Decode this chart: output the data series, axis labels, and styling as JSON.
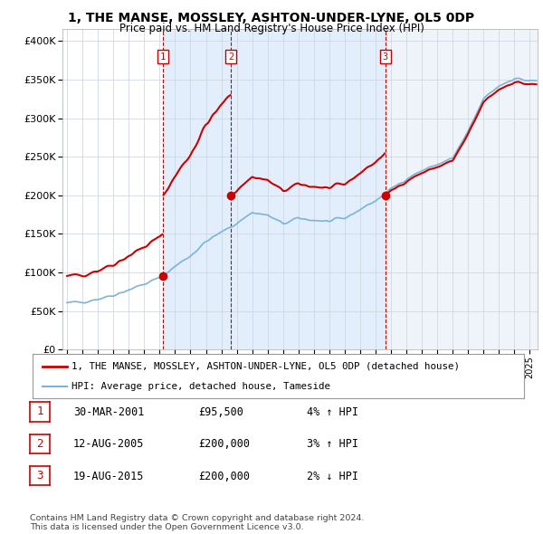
{
  "title": "1, THE MANSE, MOSSLEY, ASHTON-UNDER-LYNE, OL5 0DP",
  "subtitle": "Price paid vs. HM Land Registry's House Price Index (HPI)",
  "ytick_values": [
    0,
    50000,
    100000,
    150000,
    200000,
    250000,
    300000,
    350000,
    400000
  ],
  "ylim": [
    0,
    415000
  ],
  "sale_points": [
    {
      "year": 2001.23,
      "price": 95500,
      "label": "1"
    },
    {
      "year": 2005.61,
      "price": 200000,
      "label": "2"
    },
    {
      "year": 2015.63,
      "price": 200000,
      "label": "3"
    }
  ],
  "legend_line1": "1, THE MANSE, MOSSLEY, ASHTON-UNDER-LYNE, OL5 0DP (detached house)",
  "legend_line2": "HPI: Average price, detached house, Tameside",
  "table_rows": [
    {
      "num": "1",
      "date": "30-MAR-2001",
      "price": "£95,500",
      "hpi": "4% ↑ HPI"
    },
    {
      "num": "2",
      "date": "12-AUG-2005",
      "price": "£200,000",
      "hpi": "3% ↑ HPI"
    },
    {
      "num": "3",
      "date": "19-AUG-2015",
      "price": "£200,000",
      "hpi": "2% ↓ HPI"
    }
  ],
  "footer": "Contains HM Land Registry data © Crown copyright and database right 2024.\nThis data is licensed under the Open Government Licence v3.0.",
  "red_color": "#cc0000",
  "blue_color": "#7ab4d8",
  "shade_color": "#ddeeff",
  "grid_color": "#cccccc",
  "xmin": 1994.7,
  "xmax": 2025.5
}
